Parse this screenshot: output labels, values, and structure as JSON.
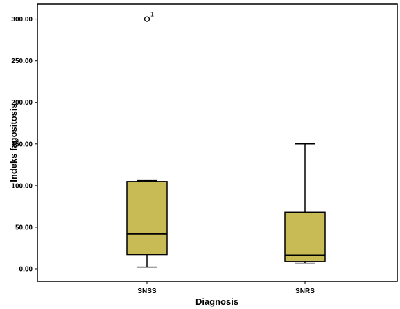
{
  "chart_data": {
    "type": "boxplot",
    "xlabel": "Diagnosis",
    "ylabel": "Indeks fagositosis",
    "ylim": [
      -15,
      318
    ],
    "yticks": [
      {
        "value": 0,
        "label": "0.00"
      },
      {
        "value": 50,
        "label": "50.00"
      },
      {
        "value": 100,
        "label": "100.00"
      },
      {
        "value": 150,
        "label": "150.00"
      },
      {
        "value": 200,
        "label": "200.00"
      },
      {
        "value": 250,
        "label": "250.00"
      },
      {
        "value": 300,
        "label": "300.00"
      }
    ],
    "categories": [
      "SNSS",
      "SNRS"
    ],
    "boxes": [
      {
        "category": "SNSS",
        "min": 2,
        "q1": 17,
        "median": 42,
        "q3": 105,
        "max": 106,
        "outliers": [
          {
            "value": 300,
            "label": "1"
          }
        ]
      },
      {
        "category": "SNRS",
        "min": 7,
        "q1": 9,
        "median": 16,
        "q3": 68,
        "max": 150,
        "outliers": []
      }
    ],
    "box_color": "#c8bb55",
    "grid": false
  }
}
